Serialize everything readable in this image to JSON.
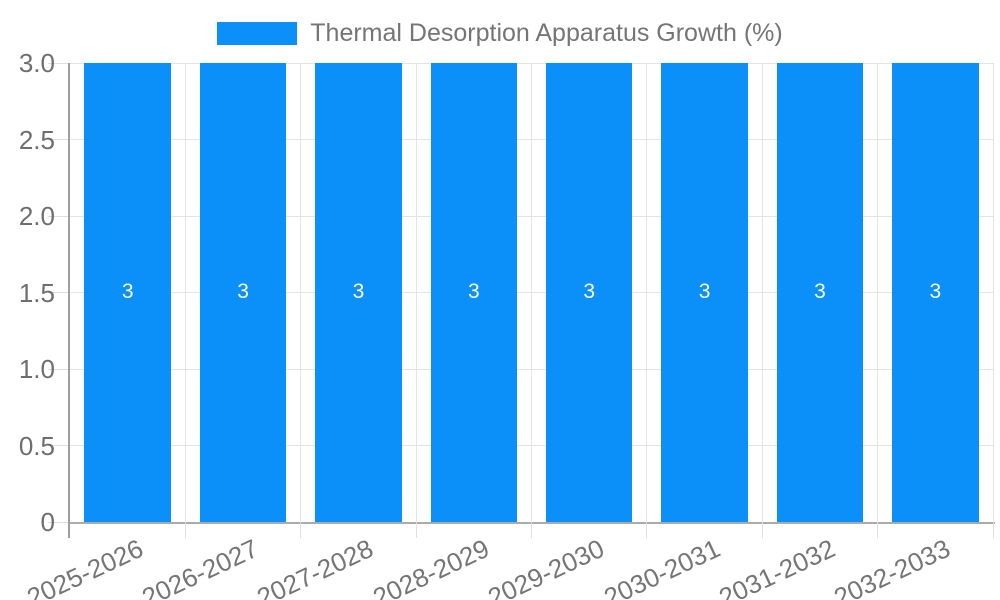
{
  "legend": {
    "label": "Thermal Desorption Apparatus Growth (%)",
    "swatch_color": "#0a90f8"
  },
  "colors": {
    "bar": "#0a90f8",
    "bar_value_text": "#ffffff",
    "gridline": "#e3e3e3",
    "axis_line": "#9e9e9e",
    "axis_text": "#6e6e6e",
    "title_text": "#757575"
  },
  "chart_data": {
    "type": "bar",
    "title": "Thermal Desorption Apparatus Growth (%)",
    "xlabel": "",
    "ylabel": "",
    "categories": [
      "2025-2026",
      "2026-2027",
      "2027-2028",
      "2028-2029",
      "2029-2030",
      "2030-2031",
      "2031-2032",
      "2032-2033"
    ],
    "series": [
      {
        "name": "Thermal Desorption Apparatus Growth (%)",
        "values": [
          3,
          3,
          3,
          3,
          3,
          3,
          3,
          3
        ],
        "bar_labels": [
          "3",
          "3",
          "3",
          "3",
          "3",
          "3",
          "3",
          "3"
        ],
        "color": "#0a90f8"
      }
    ],
    "ylim": [
      0,
      3
    ],
    "yticks": [
      0,
      0.5,
      1.0,
      1.5,
      2.0,
      2.5,
      3.0
    ],
    "ytick_labels": [
      "0",
      "0.5",
      "1.0",
      "1.5",
      "2.0",
      "2.5",
      "3.0"
    ],
    "grid": true,
    "legend_position": "top-center",
    "bar_width_fraction": 0.75,
    "x_label_rotation_deg": -25
  }
}
